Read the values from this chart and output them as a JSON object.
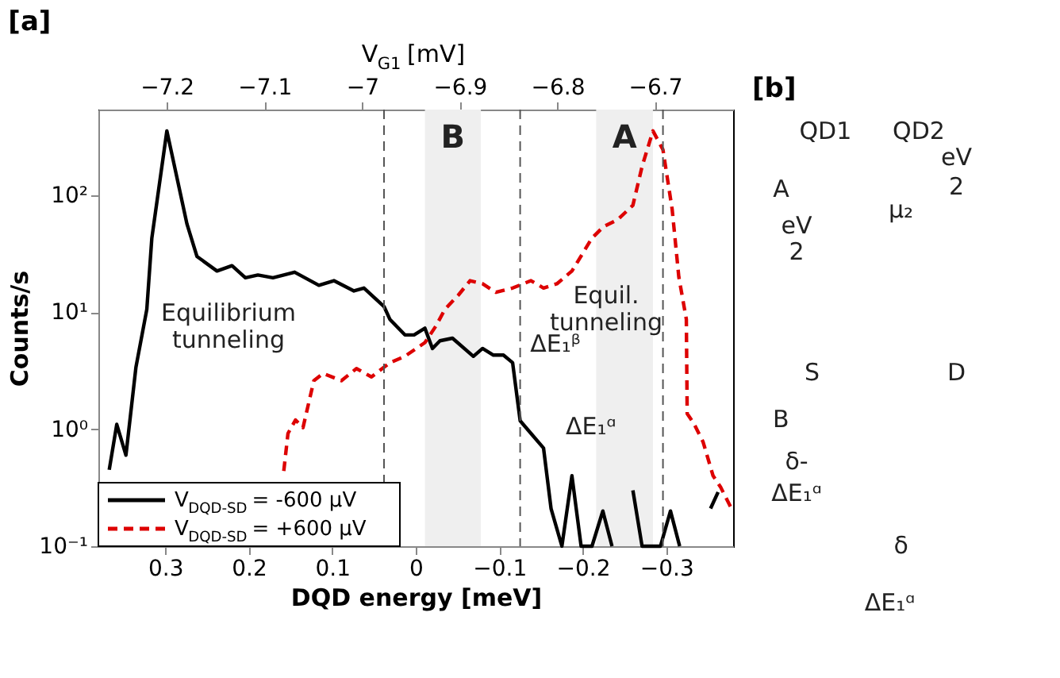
{
  "chart_data": [
    {
      "type": "line",
      "title": "[a]",
      "xlabel": "DQD energy [meV]",
      "ylabel": "Counts/s",
      "x2label": "V$_{G1}$ [mV]",
      "xlim": [
        0.38,
        -0.38
      ],
      "xticks": [
        0.3,
        0.2,
        0.1,
        {
          "value": 0,
          "label": "0"
        },
        -0.1,
        -0.2,
        -0.3
      ],
      "x2lim": [
        -7.27,
        -6.62
      ],
      "x2ticks": [
        -7.2,
        -7.1,
        {
          "value": -7,
          "label": "−7"
        },
        -6.9,
        -6.8,
        -6.7
      ],
      "ylim": [
        0.1,
        540
      ],
      "log": true,
      "yticks": [
        {
          "value": 0.1,
          "label": "10⁻¹"
        },
        {
          "value": 1,
          "label": "10⁰"
        },
        {
          "value": 10,
          "label": "10¹"
        },
        {
          "value": 100,
          "label": "10²"
        }
      ],
      "grid": false,
      "legend": "bottom left",
      "marker": "none",
      "series": [
        {
          "name": "V$_{DQD-SD}$ = -600 μV",
          "color": "#000000",
          "line_style": "solid",
          "x": [
            0.367,
            0.358,
            0.347,
            0.335,
            0.322,
            0.316,
            0.298,
            0.274,
            0.262,
            0.238,
            0.22,
            0.204,
            0.189,
            0.171,
            0.145,
            0.116,
            0.098,
            0.074,
            0.062,
            0.038,
            0.031,
            0.013,
            0.002,
            -0.011,
            -0.02,
            -0.029,
            -0.044,
            -0.069,
            -0.08,
            -0.093,
            -0.105,
            -0.116,
            -0.125,
            -0.138,
            -0.153,
            -0.162,
            -0.175,
            -0.187,
            -0.198,
            -0.211,
            -0.224,
            -0.235,
            -0.248,
            -0.26,
            -0.271,
            -0.293,
            -0.305,
            -0.316,
            -0.335,
            -0.353,
            -0.362
          ],
          "values": [
            0.45,
            1.1,
            0.6,
            3.4,
            10.6,
            43,
            355,
            57,
            30,
            22.5,
            25,
            19.7,
            20.8,
            19.7,
            22,
            17,
            18.6,
            15.2,
            16.1,
            11.2,
            8.7,
            6.4,
            6.4,
            7.3,
            4.9,
            5.7,
            6.0,
            4.2,
            4.9,
            4.3,
            4.3,
            3.7,
            1.18,
            0.92,
            0.69,
            0.21,
            0.1,
            0.4,
            0.1,
            0.1,
            0.2,
            0.1,
            null,
            0.3,
            0.1,
            0.1,
            0.2,
            0.1,
            null,
            0.21,
            0.29
          ]
        },
        {
          "name": "V$_{DQD-SD}$ = +600 μV",
          "color": "#dd0000",
          "line_style": "dashed",
          "x": [
            0.158,
            0.153,
            0.144,
            0.135,
            0.122,
            0.111,
            0.089,
            0.071,
            0.053,
            0.031,
            0.013,
            -0.011,
            -0.024,
            -0.035,
            -0.051,
            -0.065,
            -0.08,
            -0.096,
            -0.116,
            -0.138,
            -0.153,
            -0.169,
            -0.187,
            -0.211,
            -0.225,
            -0.242,
            -0.26,
            -0.271,
            -0.284,
            -0.296,
            -0.307,
            -0.315,
            -0.324,
            -0.325,
            -0.333,
            -0.344,
            -0.356,
            -0.365,
            -0.378
          ],
          "values": [
            0.44,
            0.92,
            1.2,
            1.03,
            2.6,
            3.0,
            2.6,
            3.3,
            2.8,
            3.7,
            4.2,
            5.5,
            7.6,
            10.6,
            14,
            18.6,
            17.5,
            14.8,
            16.1,
            18.6,
            16.1,
            17.5,
            22.5,
            43,
            54,
            62,
            82,
            176,
            355,
            245,
            76,
            20,
            8.7,
            1.36,
            1.12,
            0.78,
            0.4,
            0.32,
            0.21
          ]
        }
      ],
      "bands": [
        {
          "axis": "x",
          "from": -0.011,
          "to": -0.078,
          "label": "B",
          "color": "#efefef"
        },
        {
          "axis": "x",
          "from": -0.216,
          "to": -0.284,
          "label": "A",
          "color": "#efefef"
        }
      ],
      "ref_lines": [
        {
          "axis": "x",
          "value": 0.038,
          "color": "#555555",
          "line_style": "dashed"
        },
        {
          "axis": "x",
          "value": -0.125,
          "color": "#555555",
          "line_style": "dashed"
        },
        {
          "axis": "x",
          "value": -0.296,
          "color": "#555555",
          "line_style": "dashed"
        }
      ],
      "annotations": [
        "Equilibrium tunneling",
        "Equil. tunneling",
        "ΔE₁ᵝ",
        "ΔE₁ᵅ"
      ]
    },
    {
      "type": "other",
      "title": "[b]",
      "annotations": [
        "QD1",
        "QD2",
        "A",
        "eV",
        "2",
        "μ₂",
        "eV",
        "2",
        "S",
        "D",
        "B",
        "δ-",
        "ΔE₁ᵅ",
        "δ",
        "ΔE₁ᵅ"
      ]
    }
  ]
}
